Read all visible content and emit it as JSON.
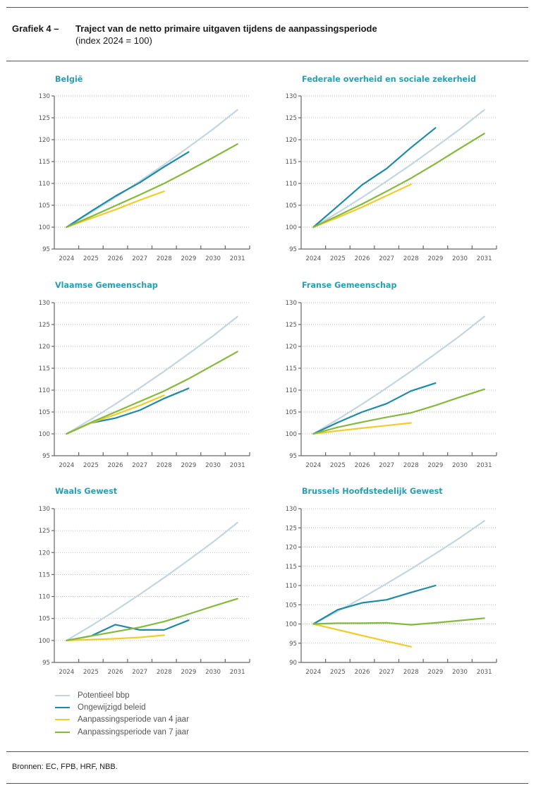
{
  "header": {
    "figure_label": "Grafiek 4 –",
    "title": "Traject van de netto primaire uitgaven tijdens de aanpassingsperiode",
    "subtitle": "(index 2024 = 100)"
  },
  "legend": [
    {
      "label": "Potentieel bbp",
      "color": "#c3d6e0"
    },
    {
      "label": "Ongewijzigd beleid",
      "color": "#1f8aa8"
    },
    {
      "label": "Aanpassingsperiode van 4 jaar",
      "color": "#f2cc2a"
    },
    {
      "label": "Aanpassingsperiode van 7 jaar",
      "color": "#84b93c"
    }
  ],
  "footer": {
    "source": "Bronnen: EC, FPB, HRF, NBB."
  },
  "chart_data": [
    {
      "type": "line",
      "title": "België",
      "categories": [
        "2024",
        "2025",
        "2026",
        "2027",
        "2028",
        "2029",
        "2030",
        "2031"
      ],
      "ylim": [
        95,
        130
      ],
      "yticks": [
        95,
        100,
        105,
        110,
        115,
        120,
        125,
        130
      ],
      "grid": true,
      "series": [
        {
          "name": "Potentieel bbp",
          "values": [
            100,
            103.3,
            106.8,
            110.5,
            114.3,
            118.3,
            122.4,
            126.8
          ]
        },
        {
          "name": "Ongewijzigd beleid",
          "values": [
            100,
            103.6,
            107.1,
            110.2,
            113.8,
            117.2
          ]
        },
        {
          "name": "Aanpassingsperiode van 4 jaar",
          "values": [
            100,
            102.0,
            104.0,
            106.2,
            108.2
          ]
        },
        {
          "name": "Aanpassingsperiode van 7 jaar",
          "values": [
            100,
            102.4,
            104.9,
            107.4,
            110.0,
            112.9,
            115.9,
            119.0
          ]
        }
      ]
    },
    {
      "type": "line",
      "title": "Federale overheid en sociale zekerheid",
      "categories": [
        "2024",
        "2025",
        "2026",
        "2027",
        "2028",
        "2029",
        "2030",
        "2031"
      ],
      "ylim": [
        95,
        130
      ],
      "yticks": [
        95,
        100,
        105,
        110,
        115,
        120,
        125,
        130
      ],
      "grid": true,
      "series": [
        {
          "name": "Potentieel bbp",
          "values": [
            100,
            103.3,
            106.8,
            110.5,
            114.3,
            118.3,
            122.4,
            126.8
          ]
        },
        {
          "name": "Ongewijzigd beleid",
          "values": [
            100,
            104.8,
            109.7,
            113.4,
            118.2,
            122.7
          ]
        },
        {
          "name": "Aanpassingsperiode van 4 jaar",
          "values": [
            100,
            102.2,
            104.6,
            107.2,
            109.8
          ]
        },
        {
          "name": "Aanpassingsperiode van 7 jaar",
          "values": [
            100,
            102.6,
            105.3,
            108.2,
            111.2,
            114.5,
            118.0,
            121.4
          ]
        }
      ]
    },
    {
      "type": "line",
      "title": "Vlaamse Gemeenschap",
      "categories": [
        "2024",
        "2025",
        "2026",
        "2027",
        "2028",
        "2029",
        "2030",
        "2031"
      ],
      "ylim": [
        95,
        130
      ],
      "yticks": [
        95,
        100,
        105,
        110,
        115,
        120,
        125,
        130
      ],
      "grid": true,
      "series": [
        {
          "name": "Potentieel bbp",
          "values": [
            100,
            103.3,
            106.8,
            110.5,
            114.3,
            118.3,
            122.4,
            126.8
          ]
        },
        {
          "name": "Ongewijzigd beleid",
          "values": [
            100,
            102.5,
            103.6,
            105.4,
            108.1,
            110.4
          ]
        },
        {
          "name": "Aanpassingsperiode van 4 jaar",
          "values": [
            100,
            102.5,
            104.4,
            106.5,
            108.8
          ]
        },
        {
          "name": "Aanpassingsperiode van 7 jaar",
          "values": [
            100,
            102.6,
            105.0,
            107.4,
            109.8,
            112.6,
            115.7,
            118.8
          ]
        }
      ]
    },
    {
      "type": "line",
      "title": "Franse Gemeenschap",
      "categories": [
        "2024",
        "2025",
        "2026",
        "2027",
        "2028",
        "2029",
        "2030",
        "2031"
      ],
      "ylim": [
        95,
        130
      ],
      "yticks": [
        95,
        100,
        105,
        110,
        115,
        120,
        125,
        130
      ],
      "grid": true,
      "series": [
        {
          "name": "Potentieel bbp",
          "values": [
            100,
            103.3,
            106.8,
            110.5,
            114.3,
            118.3,
            122.4,
            126.8
          ]
        },
        {
          "name": "Ongewijzigd beleid",
          "values": [
            100,
            102.6,
            105.0,
            106.9,
            109.8,
            111.6
          ]
        },
        {
          "name": "Aanpassingsperiode van 4 jaar",
          "values": [
            100,
            100.7,
            101.3,
            101.9,
            102.5
          ]
        },
        {
          "name": "Aanpassingsperiode van 7 jaar",
          "values": [
            100,
            101.5,
            102.7,
            103.8,
            104.8,
            106.5,
            108.4,
            110.2
          ]
        }
      ]
    },
    {
      "type": "line",
      "title": "Waals Gewest",
      "categories": [
        "2024",
        "2025",
        "2026",
        "2027",
        "2028",
        "2029",
        "2030",
        "2031"
      ],
      "ylim": [
        95,
        130
      ],
      "yticks": [
        95,
        100,
        105,
        110,
        115,
        120,
        125,
        130
      ],
      "grid": true,
      "series": [
        {
          "name": "Potentieel bbp",
          "values": [
            100,
            103.3,
            106.8,
            110.5,
            114.3,
            118.3,
            122.4,
            126.8
          ]
        },
        {
          "name": "Ongewijzigd beleid",
          "values": [
            100,
            101.0,
            103.6,
            102.4,
            102.4,
            104.6
          ]
        },
        {
          "name": "Aanpassingsperiode van 4 jaar",
          "values": [
            100,
            100.2,
            100.4,
            100.7,
            101.2
          ]
        },
        {
          "name": "Aanpassingsperiode van 7 jaar",
          "values": [
            100,
            101.0,
            102.0,
            103.0,
            104.3,
            106.0,
            107.8,
            109.5
          ]
        }
      ]
    },
    {
      "type": "line",
      "title": "Brussels Hoofdstedelijk Gewest",
      "categories": [
        "2024",
        "2025",
        "2026",
        "2027",
        "2028",
        "2029",
        "2030",
        "2031"
      ],
      "ylim": [
        90,
        130
      ],
      "yticks": [
        90,
        95,
        100,
        105,
        110,
        115,
        120,
        125,
        130
      ],
      "grid": true,
      "series": [
        {
          "name": "Potentieel bbp",
          "values": [
            100,
            103.3,
            106.8,
            110.5,
            114.3,
            118.3,
            122.4,
            126.8
          ]
        },
        {
          "name": "Ongewijzigd beleid",
          "values": [
            100,
            103.7,
            105.5,
            106.3,
            108.2,
            110.0
          ]
        },
        {
          "name": "Aanpassingsperiode van 4 jaar",
          "values": [
            100,
            98.5,
            97.0,
            95.5,
            94.1
          ]
        },
        {
          "name": "Aanpassingsperiode van 7 jaar",
          "values": [
            100,
            100.2,
            100.2,
            100.3,
            99.8,
            100.3,
            100.9,
            101.5
          ]
        }
      ]
    }
  ]
}
